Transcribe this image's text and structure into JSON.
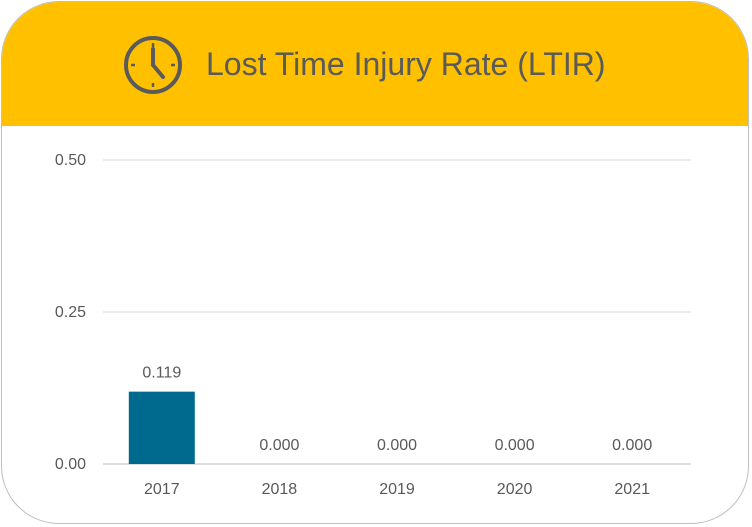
{
  "header": {
    "title": "Lost Time Injury Rate (LTIR)",
    "icon": "clock-icon",
    "color": "#ffc000"
  },
  "chart_data": {
    "type": "bar",
    "title": "Lost Time Injury Rate (LTIR)",
    "categories": [
      "2017",
      "2018",
      "2019",
      "2020",
      "2021"
    ],
    "values": [
      0.119,
      0.0,
      0.0,
      0.0,
      0.0
    ],
    "data_labels": [
      "0.119",
      "0.000",
      "0.000",
      "0.000",
      "0.000"
    ],
    "xlabel": "",
    "ylabel": "",
    "ylim": [
      0,
      0.5
    ],
    "yticks": [
      "0.00",
      "0.25",
      "0.50"
    ],
    "ytick_values": [
      0,
      0.25,
      0.5
    ],
    "grid": true,
    "bar_color": "#006a8e"
  }
}
